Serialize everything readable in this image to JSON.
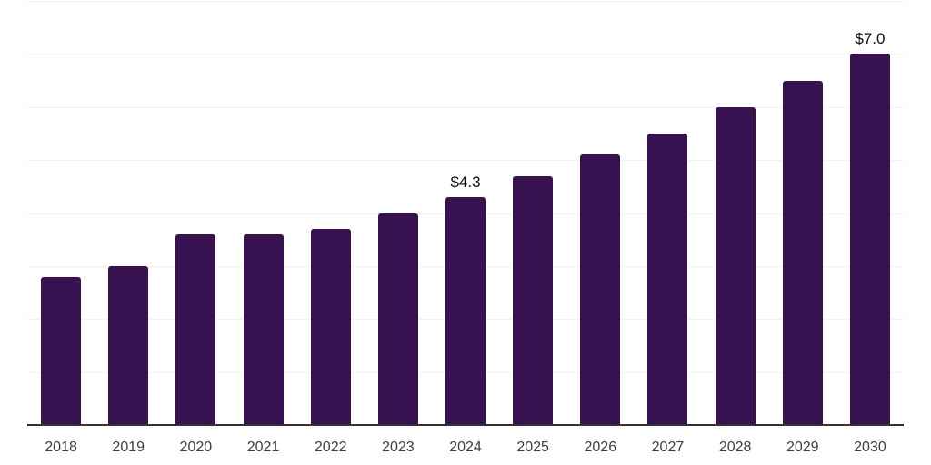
{
  "chart_data": {
    "type": "bar",
    "title": "",
    "xlabel": "",
    "ylabel": "",
    "categories": [
      "2018",
      "2019",
      "2020",
      "2021",
      "2022",
      "2023",
      "2024",
      "2025",
      "2026",
      "2027",
      "2028",
      "2029",
      "2030"
    ],
    "values": [
      2.8,
      3.0,
      3.6,
      3.6,
      3.7,
      4.0,
      4.3,
      4.7,
      5.1,
      5.5,
      6.0,
      6.5,
      7.0
    ],
    "value_labels": [
      "",
      "",
      "",
      "",
      "",
      "",
      "$4.3",
      "",
      "",
      "",
      "",
      "",
      "$7.0"
    ],
    "ylim": [
      0,
      8
    ],
    "gridline_step": 1,
    "grid": "horizontal-only",
    "legend": "none",
    "y_tick_labels_visible": false,
    "colors": {
      "bar": "#371150",
      "gridline": "#f1f1f1",
      "axis_line": "#333333",
      "tick_label": "#3d3d3d",
      "value_label": "#0d0d0d",
      "background": "#ffffff"
    }
  }
}
